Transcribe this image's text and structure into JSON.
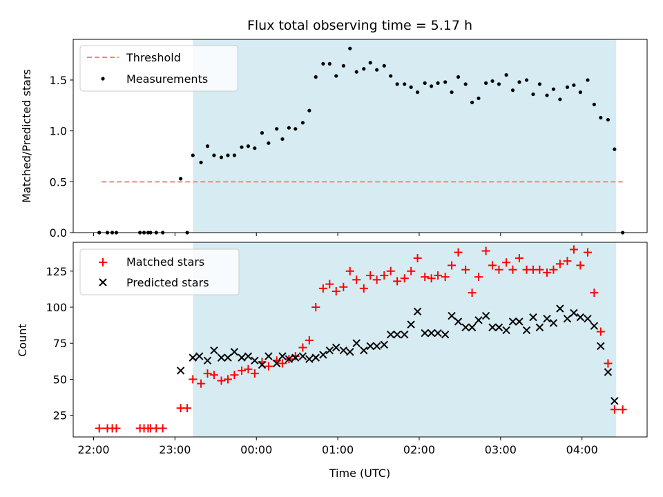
{
  "figure": {
    "title": "Flux total observing time = 5.17 h",
    "xlabel": "Time (UTC)"
  },
  "colors": {
    "shade": "#add8e6",
    "threshold": "#ff7f7f",
    "measurement": "#000000",
    "matched": "#ff0000",
    "predicted": "#000000"
  },
  "chart_data": [
    {
      "type": "scatter",
      "name": "ratio-panel",
      "ylabel": "Matched/Predicted stars",
      "xlim_hours": [
        21.75,
        28.8
      ],
      "ylim": [
        0,
        1.9
      ],
      "x_tick_labels": [
        "22:00",
        "23:00",
        "00:00",
        "01:00",
        "02:00",
        "03:00",
        "04:00"
      ],
      "x_tick_hours": [
        22,
        23,
        24,
        25,
        26,
        27,
        28
      ],
      "y_ticks": [
        0.0,
        0.5,
        1.0,
        1.5
      ],
      "y_tick_labels": [
        "0.0",
        "0.5",
        "1.0",
        "1.5"
      ],
      "shaded_region_hours": [
        23.22,
        28.42
      ],
      "legend": {
        "position": "top-left",
        "entries": [
          "Threshold",
          "Measurements"
        ]
      },
      "threshold": {
        "name": "Threshold",
        "y": 0.5,
        "x_hours": [
          22.1,
          28.5
        ]
      },
      "measurements": {
        "name": "Measurements",
        "x_hours": [
          22.07,
          22.17,
          22.23,
          22.28,
          22.57,
          22.62,
          22.67,
          22.7,
          22.77,
          22.85,
          23.07,
          23.15,
          23.22,
          23.32,
          23.4,
          23.48,
          23.57,
          23.65,
          23.73,
          23.82,
          23.9,
          23.98,
          24.07,
          24.15,
          24.25,
          24.32,
          24.4,
          24.48,
          24.57,
          24.65,
          24.73,
          24.82,
          24.9,
          24.98,
          25.07,
          25.15,
          25.23,
          25.32,
          25.4,
          25.48,
          25.57,
          25.65,
          25.73,
          25.82,
          25.9,
          25.98,
          26.07,
          26.15,
          26.23,
          26.32,
          26.4,
          26.48,
          26.57,
          26.65,
          26.73,
          26.82,
          26.9,
          26.98,
          27.07,
          27.15,
          27.23,
          27.32,
          27.4,
          27.48,
          27.57,
          27.65,
          27.73,
          27.82,
          27.9,
          27.98,
          28.07,
          28.15,
          28.23,
          28.32,
          28.4,
          28.5
        ],
        "y": [
          0.0,
          0.0,
          0.0,
          0.0,
          0.0,
          0.0,
          0.0,
          0.0,
          0.0,
          0.0,
          0.53,
          0.0,
          0.76,
          0.69,
          0.85,
          0.76,
          0.74,
          0.76,
          0.76,
          0.84,
          0.85,
          0.83,
          0.98,
          0.88,
          1.02,
          0.92,
          1.03,
          1.02,
          1.08,
          1.2,
          1.53,
          1.66,
          1.66,
          1.54,
          1.64,
          1.81,
          1.58,
          1.61,
          1.67,
          1.6,
          1.64,
          1.54,
          1.46,
          1.46,
          1.43,
          1.38,
          1.47,
          1.44,
          1.47,
          1.48,
          1.38,
          1.53,
          1.46,
          1.28,
          1.32,
          1.47,
          1.49,
          1.46,
          1.55,
          1.4,
          1.48,
          1.5,
          1.36,
          1.46,
          1.35,
          1.41,
          1.31,
          1.43,
          1.45,
          1.38,
          1.5,
          1.26,
          1.13,
          1.11,
          0.82,
          0.0
        ]
      }
    },
    {
      "type": "scatter",
      "name": "count-panel",
      "ylabel": "Count",
      "xlim_hours": [
        21.75,
        28.8
      ],
      "ylim": [
        10,
        145
      ],
      "x_tick_labels": [
        "22:00",
        "23:00",
        "00:00",
        "01:00",
        "02:00",
        "03:00",
        "04:00"
      ],
      "x_tick_hours": [
        22,
        23,
        24,
        25,
        26,
        27,
        28
      ],
      "y_ticks": [
        25,
        50,
        75,
        100,
        125
      ],
      "y_tick_labels": [
        "25",
        "50",
        "75",
        "100",
        "125"
      ],
      "shaded_region_hours": [
        23.22,
        28.42
      ],
      "legend": {
        "position": "top-left",
        "entries": [
          "Matched stars",
          "Predicted stars"
        ]
      },
      "matched": {
        "name": "Matched stars",
        "x_hours": [
          22.07,
          22.17,
          22.23,
          22.28,
          22.57,
          22.62,
          22.67,
          22.7,
          22.77,
          22.85,
          23.07,
          23.15,
          23.22,
          23.32,
          23.4,
          23.48,
          23.57,
          23.65,
          23.73,
          23.82,
          23.9,
          23.98,
          24.07,
          24.15,
          24.25,
          24.32,
          24.4,
          24.48,
          24.57,
          24.65,
          24.73,
          24.82,
          24.9,
          24.98,
          25.07,
          25.15,
          25.23,
          25.32,
          25.4,
          25.48,
          25.57,
          25.65,
          25.73,
          25.82,
          25.9,
          25.98,
          26.07,
          26.15,
          26.23,
          26.32,
          26.4,
          26.48,
          26.57,
          26.65,
          26.73,
          26.82,
          26.9,
          26.98,
          27.07,
          27.15,
          27.23,
          27.32,
          27.4,
          27.48,
          27.57,
          27.65,
          27.73,
          27.82,
          27.9,
          27.98,
          28.07,
          28.15,
          28.23,
          28.32,
          28.4,
          28.5
        ],
        "y": [
          16,
          16,
          16,
          16,
          16,
          16,
          16,
          16,
          16,
          16,
          30,
          30,
          50,
          47,
          54,
          53,
          49,
          50,
          53,
          56,
          57,
          54,
          62,
          59,
          63,
          61,
          64,
          66,
          72,
          77,
          100,
          113,
          116,
          111,
          114,
          125,
          119,
          113,
          122,
          119,
          122,
          125,
          118,
          120,
          125,
          134,
          121,
          120,
          122,
          121,
          129,
          138,
          126,
          110,
          121,
          139,
          129,
          126,
          131,
          126,
          134,
          126,
          126,
          126,
          124,
          126,
          130,
          132,
          140,
          129,
          138,
          110,
          83,
          61,
          29,
          29
        ]
      },
      "predicted": {
        "name": "Predicted stars",
        "x_hours": [
          23.07,
          23.22,
          23.3,
          23.4,
          23.48,
          23.57,
          23.65,
          23.73,
          23.82,
          23.9,
          23.98,
          24.07,
          24.15,
          24.25,
          24.32,
          24.4,
          24.48,
          24.57,
          24.65,
          24.73,
          24.82,
          24.9,
          24.98,
          25.07,
          25.15,
          25.23,
          25.32,
          25.4,
          25.48,
          25.57,
          25.65,
          25.73,
          25.82,
          25.9,
          25.98,
          26.07,
          26.15,
          26.23,
          26.32,
          26.4,
          26.48,
          26.57,
          26.65,
          26.73,
          26.82,
          26.9,
          26.98,
          27.07,
          27.15,
          27.23,
          27.32,
          27.4,
          27.48,
          27.57,
          27.65,
          27.73,
          27.82,
          27.9,
          27.98,
          28.07,
          28.15,
          28.23,
          28.32,
          28.4
        ],
        "y": [
          56,
          65,
          66,
          63,
          70,
          65,
          65,
          69,
          65,
          66,
          63,
          60,
          66,
          61,
          66,
          64,
          65,
          66,
          64,
          65,
          67,
          70,
          72,
          70,
          69,
          75,
          70,
          73,
          73,
          74,
          81,
          81,
          81,
          88,
          97,
          82,
          82,
          82,
          81,
          94,
          90,
          86,
          86,
          91,
          94,
          86,
          86,
          84,
          90,
          90,
          84,
          93,
          86,
          92,
          89,
          99,
          92,
          96,
          93,
          92,
          87,
          73,
          55,
          35
        ]
      }
    }
  ]
}
